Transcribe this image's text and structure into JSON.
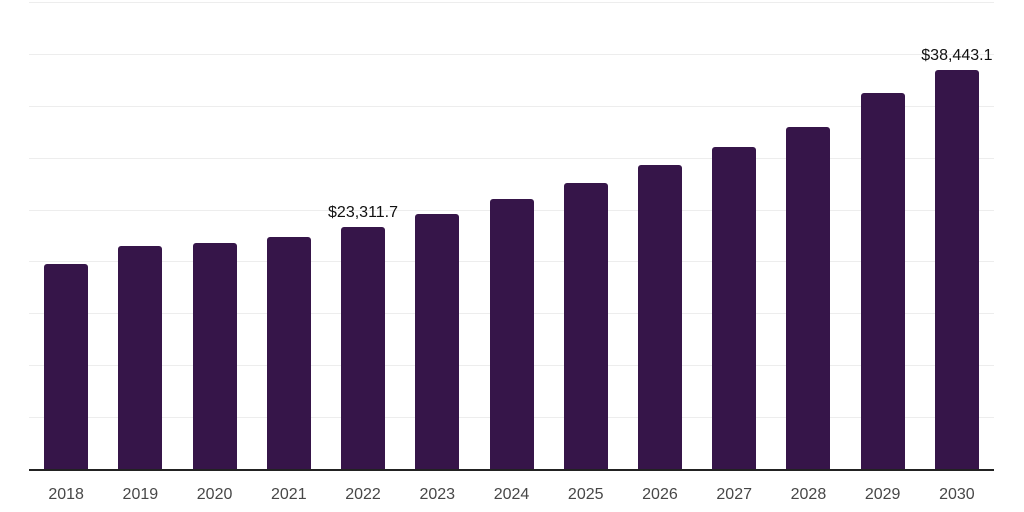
{
  "chart_data": {
    "type": "bar",
    "title": "",
    "xlabel": "",
    "ylabel": "",
    "categories": [
      "2018",
      "2019",
      "2020",
      "2021",
      "2022",
      "2023",
      "2024",
      "2025",
      "2026",
      "2027",
      "2028",
      "2029",
      "2030"
    ],
    "values": [
      19750,
      21500,
      21750,
      22350,
      23311.7,
      24600,
      26000,
      27550,
      29300,
      31050,
      32950,
      36200,
      38443.1
    ],
    "data_labels": [
      "",
      "",
      "",
      "",
      "$23,311.7",
      "",
      "",
      "",
      "",
      "",
      "",
      "",
      "$38,443.1"
    ],
    "ylim": [
      0,
      45000
    ],
    "grid_step": 5000,
    "gridlines": "horizontal",
    "legend_position": "none",
    "bar_color": "#361549",
    "grid_color": "#ededed",
    "axis_line_color": "#222222",
    "data_label_color": "#111111",
    "tick_label_color": "#474747",
    "background_color": "#ffffff"
  }
}
